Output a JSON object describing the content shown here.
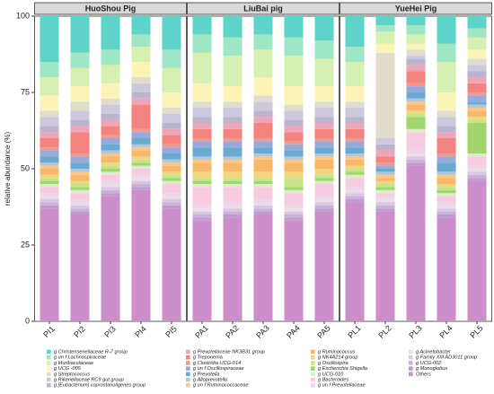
{
  "chart_data": {
    "type": "stacked_bar",
    "ylabel": "relative abundance (%)",
    "groups": [
      "HuoShou Pig",
      "LiuBai pig",
      "YueHei Pig"
    ],
    "categories": [
      "PI1",
      "PI2",
      "PI3",
      "PI4",
      "PI5",
      "PA1",
      "PA2",
      "PA3",
      "PA4",
      "PA5",
      "PL1",
      "PL2",
      "PL3",
      "PL4",
      "PL5"
    ],
    "ylim": [
      0,
      100
    ],
    "yticks": [
      0,
      25,
      50,
      75,
      100
    ],
    "series": [
      {
        "name": "g Christensenellaceae R-7 group",
        "color": "#5dd3c9",
        "values": [
          15,
          12,
          11,
          6,
          11,
          6,
          7,
          6,
          7,
          8,
          10,
          3,
          3,
          9,
          4
        ]
      },
      {
        "name": "g un f Lachnospiraceae",
        "color": "#9ee6c6",
        "values": [
          5,
          5,
          5,
          4,
          6,
          6,
          6,
          5,
          6,
          6,
          5,
          2,
          3,
          6,
          3
        ]
      },
      {
        "name": "g Muribaculaceae",
        "color": "#d6f0b4",
        "values": [
          6,
          6,
          6,
          5,
          8,
          10,
          10,
          9,
          10,
          9,
          8,
          4,
          3,
          10,
          4
        ]
      },
      {
        "name": "g UCG -005",
        "color": "#fbf4b6",
        "values": [
          5,
          5,
          5,
          5,
          5,
          6,
          5,
          6,
          6,
          5,
          5,
          3,
          2,
          6,
          3
        ]
      },
      {
        "name": "g Streptococcus",
        "color": "#e2dccb",
        "values": [
          2,
          3,
          2,
          2,
          2,
          2,
          2,
          2,
          2,
          2,
          2,
          28,
          2,
          2,
          2
        ]
      },
      {
        "name": "g Rikenellaceae RC9 gut group",
        "color": "#cdc8dc",
        "values": [
          3,
          3,
          3,
          3,
          3,
          3,
          3,
          3,
          3,
          3,
          3,
          2,
          1,
          3,
          2
        ]
      },
      {
        "name": "g [Eubacterium] coprostanoligenes group",
        "color": "#bab4cf",
        "values": [
          2,
          2,
          2,
          2,
          2,
          2,
          2,
          2,
          2,
          2,
          2,
          2,
          2,
          2,
          2
        ]
      },
      {
        "name": "g Prevotellaceae NK3B31 group",
        "color": "#eaa6bb",
        "values": [
          2,
          2,
          2,
          2,
          2,
          2,
          2,
          2,
          2,
          2,
          2,
          2,
          2,
          2,
          2
        ]
      },
      {
        "name": "g Treponema",
        "color": "#f3847f",
        "values": [
          3,
          7,
          3,
          8,
          3,
          3,
          3,
          5,
          3,
          3,
          3,
          2,
          4,
          5,
          3
        ]
      },
      {
        "name": "g Clostridia UCG-014",
        "color": "#f2998c",
        "values": [
          1,
          1,
          1,
          1,
          1,
          1,
          1,
          1,
          1,
          1,
          1,
          1,
          1,
          1,
          1
        ]
      },
      {
        "name": "g un f Oscillospiraceae",
        "color": "#9ba8d8",
        "values": [
          2,
          2,
          2,
          2,
          2,
          2,
          2,
          2,
          2,
          2,
          2,
          1,
          2,
          2,
          2
        ]
      },
      {
        "name": "g Prevotella",
        "color": "#6aaad2",
        "values": [
          2,
          2,
          2,
          2,
          2,
          3,
          3,
          2,
          2,
          2,
          2,
          1,
          2,
          3,
          1
        ]
      },
      {
        "name": "g Alloprevotella",
        "color": "#a9c8e4",
        "values": [
          1,
          1,
          1,
          1,
          1,
          1,
          1,
          1,
          1,
          1,
          1,
          1,
          1,
          1,
          1
        ]
      },
      {
        "name": "g un f Ruminococcaceae",
        "color": "#f6c68c",
        "values": [
          1,
          1,
          1,
          1,
          1,
          1,
          1,
          1,
          1,
          1,
          1,
          1,
          1,
          1,
          1
        ]
      },
      {
        "name": "g Ruminococcus",
        "color": "#f7b86b",
        "values": [
          2,
          2,
          2,
          2,
          2,
          3,
          3,
          4,
          3,
          3,
          2,
          1,
          2,
          2,
          2
        ]
      },
      {
        "name": "g NK4A214 group",
        "color": "#f4d47c",
        "values": [
          1,
          1,
          1,
          1,
          1,
          2,
          2,
          2,
          2,
          2,
          1,
          1,
          1,
          1,
          1
        ]
      },
      {
        "name": "g Oscillospira",
        "color": "#c9e28c",
        "values": [
          1,
          1,
          1,
          1,
          1,
          1,
          1,
          1,
          3,
          1,
          1,
          1,
          1,
          1,
          1
        ]
      },
      {
        "name": "g Escherichia Shigella",
        "color": "#a0d66c",
        "values": [
          1,
          1,
          1,
          1,
          1,
          1,
          1,
          1,
          1,
          1,
          1,
          1,
          4,
          1,
          10
        ]
      },
      {
        "name": "g UCG-010",
        "color": "#d8f0c2",
        "values": [
          1,
          1,
          1,
          1,
          1,
          1,
          1,
          1,
          1,
          1,
          1,
          1,
          1,
          1,
          1
        ]
      },
      {
        "name": "g Bacteroides",
        "color": "#f7cbe0",
        "values": [
          2,
          2,
          2,
          2,
          3,
          6,
          5,
          4,
          4,
          4,
          3,
          1,
          6,
          2,
          3
        ]
      },
      {
        "name": "g un f Prevotellaceae",
        "color": "#f0d5e6",
        "values": [
          1,
          1,
          1,
          1,
          1,
          1,
          1,
          1,
          1,
          1,
          1,
          1,
          1,
          1,
          1
        ]
      },
      {
        "name": "g Acinetobacter",
        "color": "#e8dde8",
        "values": [
          1,
          1,
          1,
          1,
          1,
          1,
          1,
          1,
          1,
          1,
          1,
          1,
          1,
          1,
          1
        ]
      },
      {
        "name": "g Family XIII AD3011 group",
        "color": "#d9c7e0",
        "values": [
          1,
          1,
          1,
          1,
          1,
          1,
          1,
          1,
          1,
          1,
          1,
          1,
          1,
          1,
          1
        ]
      },
      {
        "name": "g UCG-002",
        "color": "#cab1d8",
        "values": [
          1,
          1,
          1,
          1,
          1,
          1,
          1,
          1,
          1,
          1,
          1,
          1,
          1,
          1,
          1
        ]
      },
      {
        "name": "g Monoglobus",
        "color": "#bb9ece",
        "values": [
          1,
          1,
          1,
          1,
          1,
          1,
          1,
          1,
          1,
          1,
          1,
          1,
          1,
          1,
          1
        ]
      },
      {
        "name": "Others",
        "color": "#cd8fcc",
        "values": [
          37,
          35,
          41,
          43,
          37,
          33,
          34,
          35,
          33,
          36,
          39,
          36,
          51,
          34,
          46
        ]
      }
    ]
  }
}
